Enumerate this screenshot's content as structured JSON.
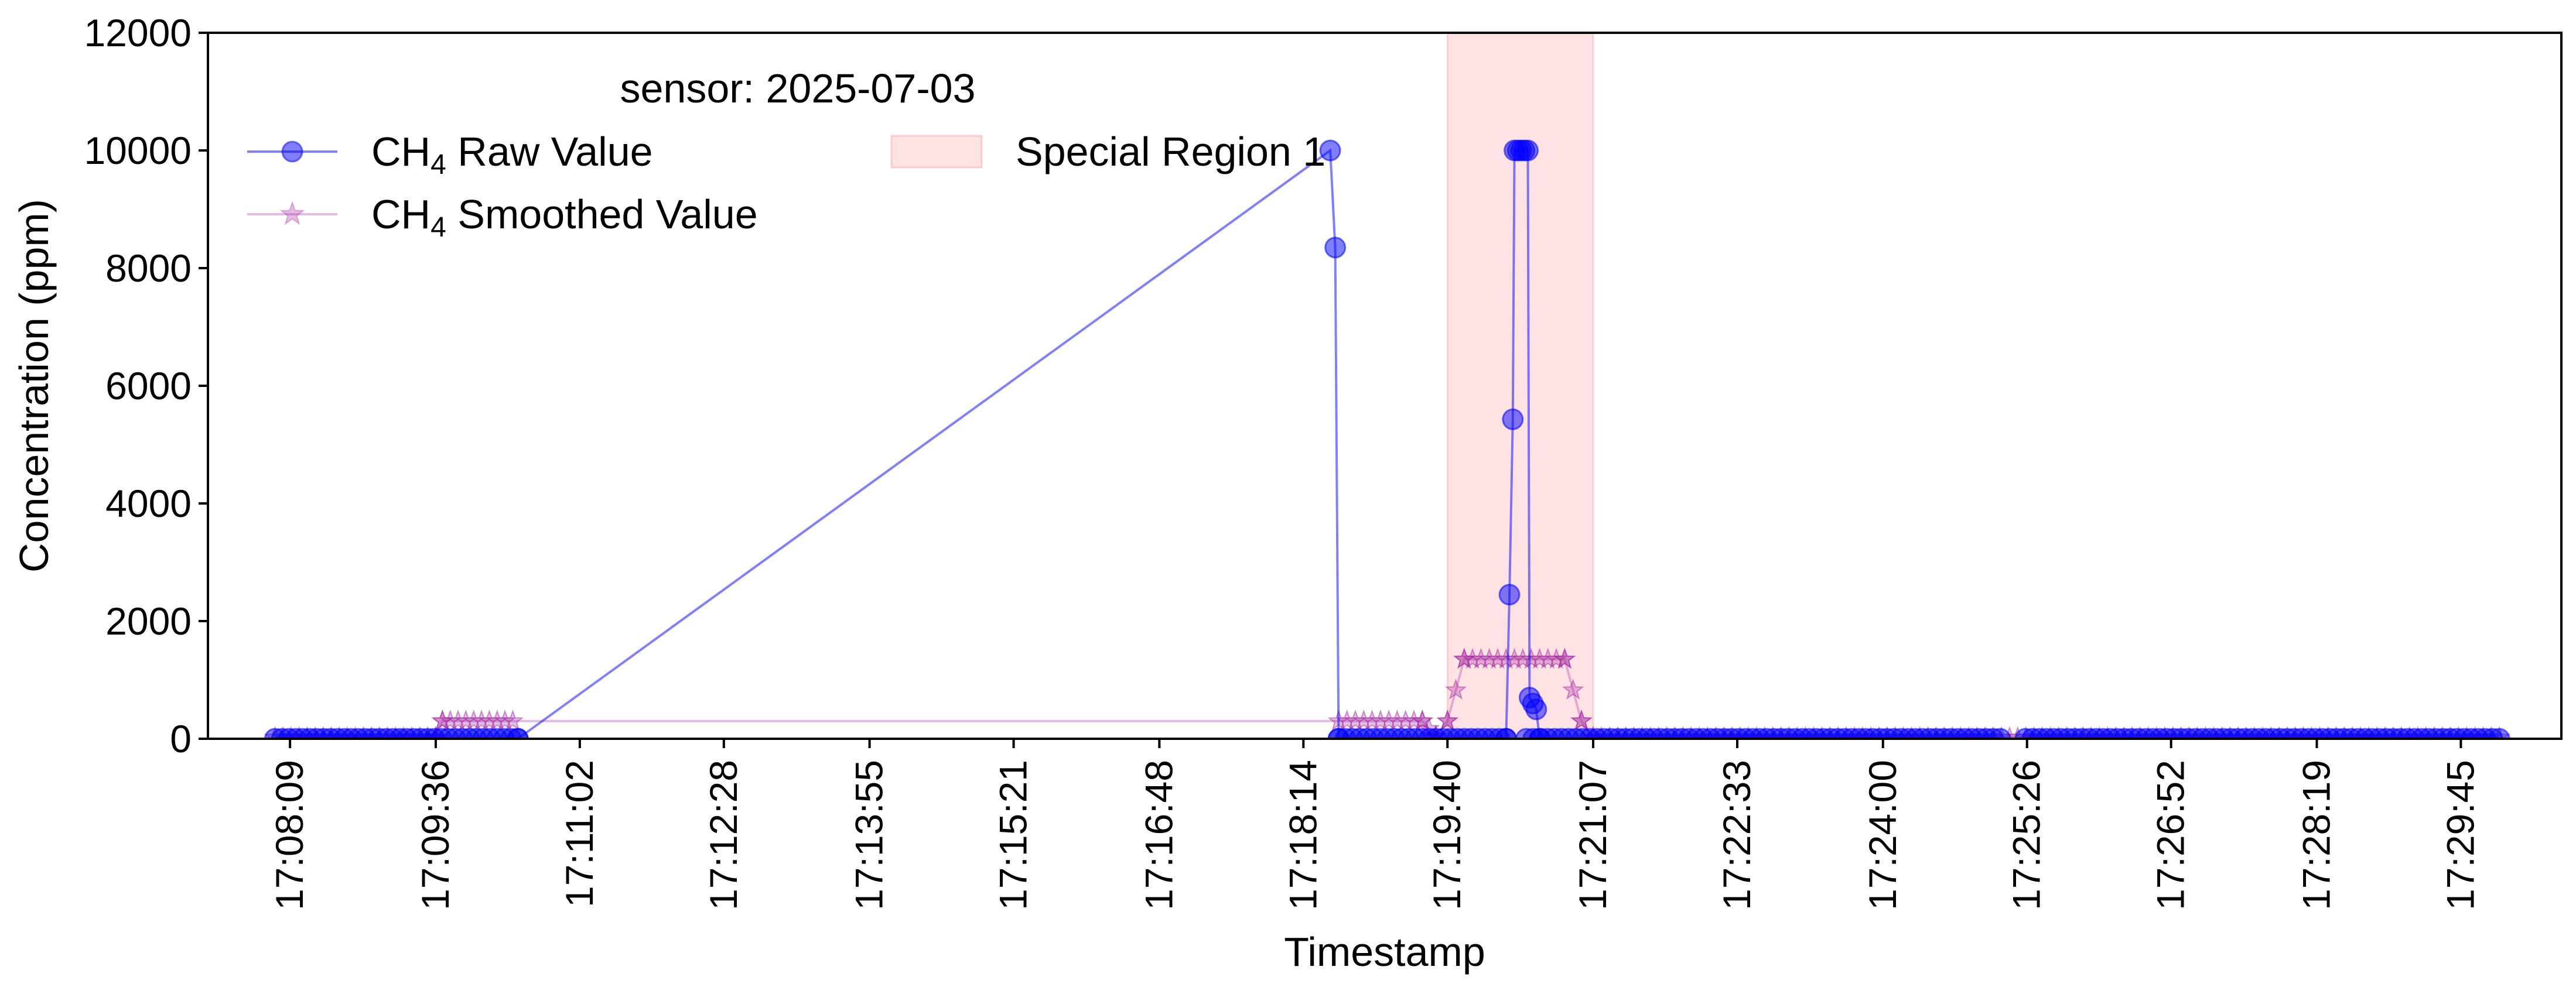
{
  "chart_data": {
    "type": "line",
    "title": "",
    "xlabel": "Timestamp",
    "ylabel": "Concentration (ppm)",
    "ylim": [
      0,
      12000
    ],
    "yticks": [
      "0",
      "2000",
      "4000",
      "6000",
      "8000",
      "10000",
      "12000"
    ],
    "xlim": [
      "17:07:20",
      "17:30:45"
    ],
    "xticks": [
      "17:08:09",
      "17:09:36",
      "17:11:02",
      "17:12:28",
      "17:13:55",
      "17:15:21",
      "17:16:48",
      "17:18:14",
      "17:19:40",
      "17:21:07",
      "17:22:33",
      "17:24:00",
      "17:25:26",
      "17:26:52",
      "17:28:19",
      "17:29:45"
    ],
    "grid": false,
    "legend": {
      "title": "sensor: 2025-07-03",
      "placement": "upper-left",
      "entries": [
        {
          "prefix": "CH",
          "sub": "4",
          "suffix": " Raw Value"
        },
        {
          "prefix": "CH",
          "sub": "4",
          "suffix": "  Smoothed Value"
        },
        {
          "label": "Special Region 1"
        }
      ]
    },
    "regions": [
      {
        "name": "Special Region 1",
        "x_start": "17:19:40",
        "x_end": "17:21:07",
        "color": "#ffc0c4"
      }
    ],
    "series": [
      {
        "name": "CH4 Raw Value",
        "color": "#0000ff",
        "marker": "circle",
        "segments": [
          {
            "x_start": "17:08:00",
            "x_end": "17:10:25",
            "value": 0
          },
          {
            "x_start": "17:18:35",
            "x_end": "17:20:15",
            "value": 0
          },
          {
            "x_start": "17:20:27",
            "x_end": "17:25:10",
            "value": 0
          },
          {
            "x_start": "17:25:25",
            "x_end": "17:30:08",
            "value": 0
          }
        ],
        "points": [
          {
            "x": "17:10:25",
            "y": 0
          },
          {
            "x": "17:18:30",
            "y": 10000
          },
          {
            "x": "17:18:33",
            "y": 8350
          },
          {
            "x": "17:18:35",
            "y": 0
          },
          {
            "x": "17:20:15",
            "y": 0
          },
          {
            "x": "17:20:17",
            "y": 2450
          },
          {
            "x": "17:20:19",
            "y": 5430
          },
          {
            "x": "17:20:20",
            "y": 10000
          },
          {
            "x": "17:20:22",
            "y": 10000
          },
          {
            "x": "17:20:24",
            "y": 10000
          },
          {
            "x": "17:20:26",
            "y": 10000
          },
          {
            "x": "17:20:28",
            "y": 10000
          },
          {
            "x": "17:20:29",
            "y": 700
          },
          {
            "x": "17:20:31",
            "y": 600
          },
          {
            "x": "17:20:33",
            "y": 500
          },
          {
            "x": "17:20:35",
            "y": 0
          }
        ]
      },
      {
        "name": "CH4 Smoothed Value",
        "color": "#a0219f",
        "marker": "star",
        "points": [
          {
            "x": "17:08:00",
            "y": 20
          },
          {
            "x": "17:09:36",
            "y": 20
          },
          {
            "x": "17:09:40",
            "y": 300
          },
          {
            "x": "17:10:22",
            "y": 300
          },
          {
            "x": "17:18:35",
            "y": 300
          },
          {
            "x": "17:19:25",
            "y": 300
          },
          {
            "x": "17:19:33",
            "y": 40
          },
          {
            "x": "17:19:40",
            "y": 300
          },
          {
            "x": "17:19:50",
            "y": 1350
          },
          {
            "x": "17:20:50",
            "y": 1350
          },
          {
            "x": "17:21:00",
            "y": 300
          },
          {
            "x": "17:21:07",
            "y": 20
          },
          {
            "x": "17:30:08",
            "y": 20
          }
        ]
      }
    ]
  }
}
